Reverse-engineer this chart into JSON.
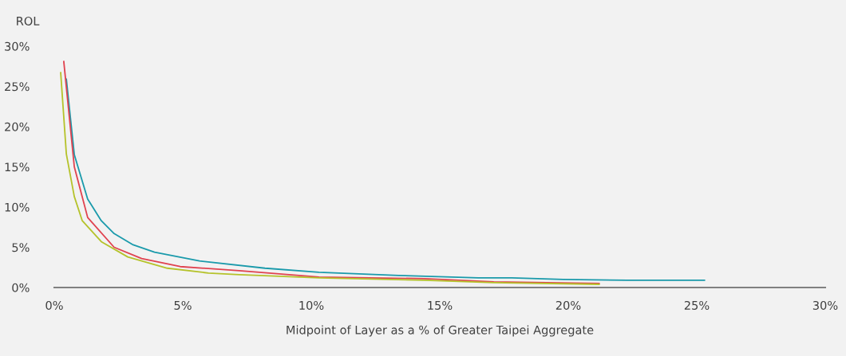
{
  "chart_data": {
    "type": "line",
    "ylabel": "ROL",
    "xlabel": "Midpoint of Layer as a % of Greater Taipei Aggregate",
    "xlim": [
      0,
      30
    ],
    "ylim": [
      0,
      30
    ],
    "xticks": [
      {
        "value": 0,
        "label": "0%"
      },
      {
        "value": 5,
        "label": "5%"
      },
      {
        "value": 10,
        "label": "10%"
      },
      {
        "value": 15,
        "label": "15%"
      },
      {
        "value": 20,
        "label": "20%"
      },
      {
        "value": 25,
        "label": "25%"
      },
      {
        "value": 30,
        "label": "30%"
      }
    ],
    "yticks": [
      {
        "value": 0,
        "label": "0%"
      },
      {
        "value": 5,
        "label": "5%"
      },
      {
        "value": 10,
        "label": "10%"
      },
      {
        "value": 15,
        "label": "15%"
      },
      {
        "value": 20,
        "label": "20%"
      },
      {
        "value": 25,
        "label": "25%"
      },
      {
        "value": 30,
        "label": "30%"
      }
    ],
    "grid": false,
    "marker": "none",
    "line_style": "solid",
    "series": [
      {
        "color": "#1a9aab",
        "x": [
          0.47,
          0.78,
          1.3,
          1.83,
          2.33,
          3.07,
          3.9,
          5.65,
          8.2,
          10.3,
          13.4,
          16.5,
          17.8,
          19.8,
          22.3,
          25.3
        ],
        "values": [
          25.9,
          16.5,
          11.0,
          8.3,
          6.7,
          5.3,
          4.4,
          3.3,
          2.4,
          1.9,
          1.5,
          1.2,
          1.2,
          1.0,
          0.9,
          0.9
        ]
      },
      {
        "color": "#e0424f",
        "x": [
          0.37,
          0.78,
          1.3,
          2.33,
          3.4,
          4.9,
          7.2,
          10.3,
          14.4,
          17.1,
          21.2
        ],
        "values": [
          28.1,
          15.0,
          8.7,
          5.0,
          3.6,
          2.6,
          2.1,
          1.3,
          1.1,
          0.7,
          0.5
        ]
      },
      {
        "color": "#b5c22a",
        "x": [
          0.25,
          0.47,
          0.78,
          1.09,
          1.83,
          2.86,
          4.4,
          6.0,
          7.2,
          10.3,
          14.4,
          17.1,
          21.2
        ],
        "values": [
          26.7,
          16.6,
          11.3,
          8.3,
          5.7,
          3.8,
          2.4,
          1.8,
          1.6,
          1.2,
          0.9,
          0.6,
          0.4
        ]
      }
    ]
  }
}
